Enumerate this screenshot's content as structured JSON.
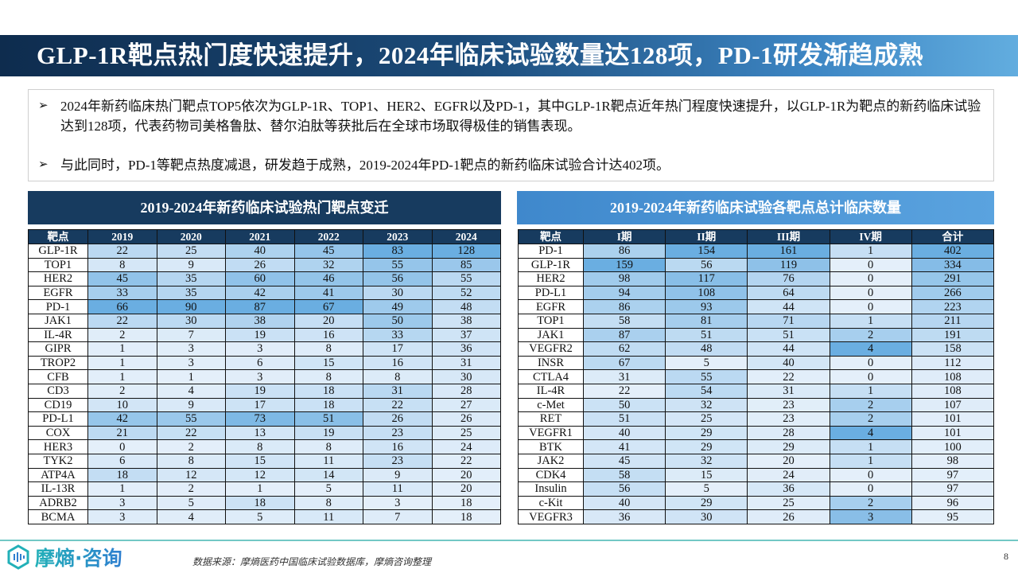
{
  "title": "GLP-1R靶点热门度快速提升，2024年临床试验数量达128项，PD-1研发渐趋成熟",
  "bullets": [
    "2024年新药临床热门靶点TOP5依次为GLP-1R、TOP1、HER2、EGFR以及PD-1，其中GLP-1R靶点近年热门程度快速提升，以GLP-1R为靶点的新药临床试验达到128项，代表药物司美格鲁肽、替尔泊肽等获批后在全球市场取得极佳的销售表现。",
    "与此同时，PD-1等靶点热度减退，研发趋于成熟，2019-2024年PD-1靶点的新药临床试验合计达402项。"
  ],
  "bullet_icon": "arrow-right-icon",
  "left_table": {
    "title": "2019-2024年新药临床试验热门靶点变迁",
    "headers": [
      "靶点",
      "2019",
      "2020",
      "2021",
      "2022",
      "2023",
      "2024"
    ],
    "rows": [
      [
        "GLP-1R",
        22,
        25,
        40,
        45,
        83,
        128
      ],
      [
        "TOP1",
        8,
        9,
        26,
        32,
        55,
        85
      ],
      [
        "HER2",
        45,
        35,
        60,
        46,
        56,
        55
      ],
      [
        "EGFR",
        33,
        35,
        42,
        41,
        30,
        52
      ],
      [
        "PD-1",
        66,
        90,
        87,
        67,
        49,
        48
      ],
      [
        "JAK1",
        22,
        30,
        38,
        20,
        50,
        38
      ],
      [
        "IL-4R",
        2,
        7,
        19,
        16,
        33,
        37
      ],
      [
        "GIPR",
        1,
        3,
        3,
        8,
        17,
        36
      ],
      [
        "TROP2",
        1,
        3,
        6,
        15,
        16,
        31
      ],
      [
        "CFB",
        1,
        1,
        3,
        8,
        8,
        30
      ],
      [
        "CD3",
        2,
        4,
        19,
        18,
        31,
        28
      ],
      [
        "CD19",
        10,
        9,
        17,
        18,
        22,
        27
      ],
      [
        "PD-L1",
        42,
        55,
        73,
        51,
        26,
        26
      ],
      [
        "COX",
        21,
        22,
        13,
        19,
        23,
        25
      ],
      [
        "HER3",
        0,
        2,
        8,
        8,
        16,
        24
      ],
      [
        "TYK2",
        6,
        8,
        15,
        11,
        23,
        22
      ],
      [
        "ATP4A",
        18,
        12,
        12,
        14,
        9,
        20
      ],
      [
        "IL-13R",
        1,
        2,
        1,
        5,
        11,
        20
      ],
      [
        "ADRB2",
        3,
        5,
        18,
        8,
        3,
        18
      ],
      [
        "BCMA",
        3,
        4,
        5,
        11,
        7,
        18
      ]
    ]
  },
  "right_table": {
    "title": "2019-2024年新药临床试验各靶点总计临床数量",
    "headers": [
      "靶点",
      "I期",
      "II期",
      "III期",
      "IV期",
      "合计"
    ],
    "rows": [
      [
        "PD-1",
        86,
        154,
        161,
        1,
        402
      ],
      [
        "GLP-1R",
        159,
        56,
        119,
        0,
        334
      ],
      [
        "HER2",
        98,
        117,
        76,
        0,
        291
      ],
      [
        "PD-L1",
        94,
        108,
        64,
        0,
        266
      ],
      [
        "EGFR",
        86,
        93,
        44,
        0,
        223
      ],
      [
        "TOP1",
        58,
        81,
        71,
        1,
        211
      ],
      [
        "JAK1",
        87,
        51,
        51,
        2,
        191
      ],
      [
        "VEGFR2",
        62,
        48,
        44,
        4,
        158
      ],
      [
        "INSR",
        67,
        5,
        40,
        0,
        112
      ],
      [
        "CTLA4",
        31,
        55,
        22,
        0,
        108
      ],
      [
        "IL-4R",
        22,
        54,
        31,
        1,
        108
      ],
      [
        "c-Met",
        50,
        32,
        23,
        2,
        107
      ],
      [
        "RET",
        51,
        25,
        23,
        2,
        101
      ],
      [
        "VEGFR1",
        40,
        29,
        28,
        4,
        101
      ],
      [
        "BTK",
        41,
        29,
        29,
        1,
        100
      ],
      [
        "JAK2",
        45,
        32,
        20,
        1,
        98
      ],
      [
        "CDK4",
        58,
        15,
        24,
        0,
        97
      ],
      [
        "Insulin",
        56,
        5,
        36,
        0,
        97
      ],
      [
        "c-Kit",
        40,
        29,
        25,
        2,
        96
      ],
      [
        "VEGFR3",
        36,
        30,
        26,
        3,
        95
      ]
    ]
  },
  "heat_colors": {
    "low": "#e4effa",
    "high": "#6aaee1"
  },
  "footer": {
    "logo_text": "摩熵·咨询",
    "source": "数据来源：摩熵医药中国临床试验数据库，摩熵咨询整理",
    "page": "8"
  }
}
